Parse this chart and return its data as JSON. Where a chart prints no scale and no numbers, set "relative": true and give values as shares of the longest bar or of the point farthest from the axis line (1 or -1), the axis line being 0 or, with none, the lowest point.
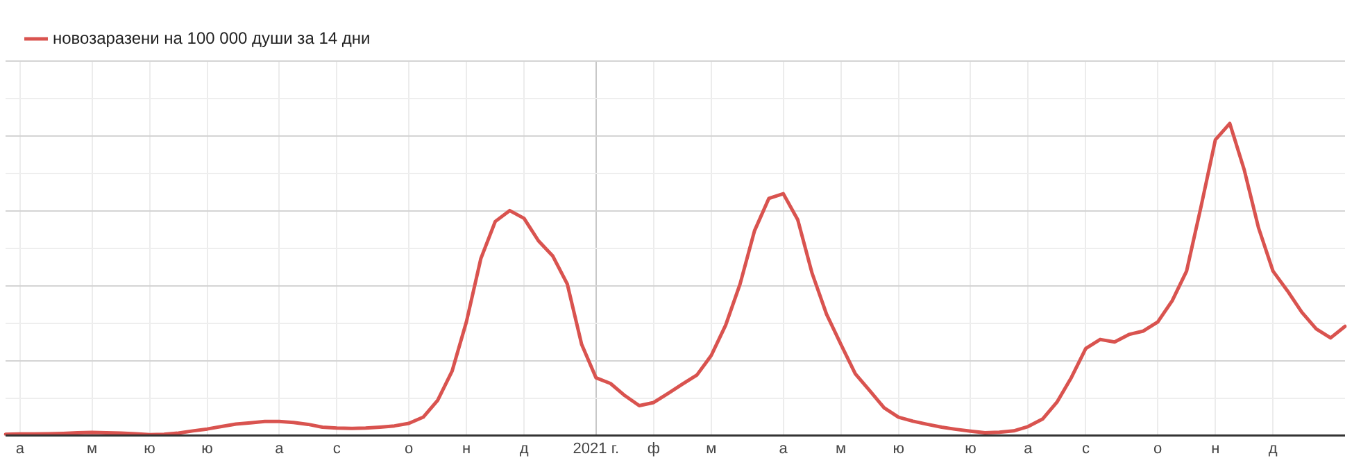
{
  "chart_data": {
    "type": "line",
    "relative": true,
    "grid": true,
    "legend": "top left",
    "marker": "none",
    "line_style": "solid",
    "categories": [
      null,
      "а",
      null,
      null,
      null,
      null,
      "м",
      null,
      null,
      null,
      "ю",
      null,
      null,
      null,
      "ю",
      null,
      null,
      null,
      null,
      "а",
      null,
      null,
      null,
      "с",
      null,
      null,
      null,
      null,
      "о",
      null,
      null,
      null,
      "н",
      null,
      null,
      null,
      "д",
      null,
      null,
      null,
      null,
      "2021 г.",
      null,
      null,
      null,
      "ф",
      null,
      null,
      null,
      "м",
      null,
      null,
      null,
      null,
      "а",
      null,
      null,
      null,
      "м",
      null,
      null,
      null,
      "ю",
      null,
      null,
      null,
      null,
      "ю",
      null,
      null,
      null,
      "а",
      null,
      null,
      null,
      "с",
      null,
      null,
      null,
      null,
      "о",
      null,
      null,
      null,
      "н",
      null,
      null,
      null,
      "д",
      null,
      null,
      null,
      null,
      null
    ],
    "series": [
      {
        "name": "новозаразени на 100 000 души за 14 дни",
        "color": "#d9534f",
        "values": [
          0.004,
          0.005,
          0.005,
          0.006,
          0.007,
          0.009,
          0.01,
          0.009,
          0.008,
          0.006,
          0.003,
          0.004,
          0.008,
          0.015,
          0.021,
          0.029,
          0.037,
          0.041,
          0.045,
          0.045,
          0.042,
          0.036,
          0.027,
          0.024,
          0.023,
          0.024,
          0.027,
          0.031,
          0.039,
          0.059,
          0.113,
          0.206,
          0.365,
          0.567,
          0.686,
          0.721,
          0.696,
          0.624,
          0.575,
          0.486,
          0.292,
          0.185,
          0.167,
          0.128,
          0.096,
          0.106,
          0.135,
          0.165,
          0.194,
          0.257,
          0.354,
          0.486,
          0.656,
          0.76,
          0.775,
          0.692,
          0.52,
          0.389,
          0.292,
          0.198,
          0.144,
          0.089,
          0.059,
          0.046,
          0.036,
          0.027,
          0.02,
          0.014,
          0.009,
          0.011,
          0.015,
          0.029,
          0.053,
          0.107,
          0.186,
          0.279,
          0.308,
          0.3,
          0.324,
          0.335,
          0.364,
          0.432,
          0.527,
          0.733,
          0.948,
          1,
          0.852,
          0.665,
          0.527,
          0.464,
          0.395,
          0.342,
          0.313,
          0.35
        ]
      }
    ]
  }
}
